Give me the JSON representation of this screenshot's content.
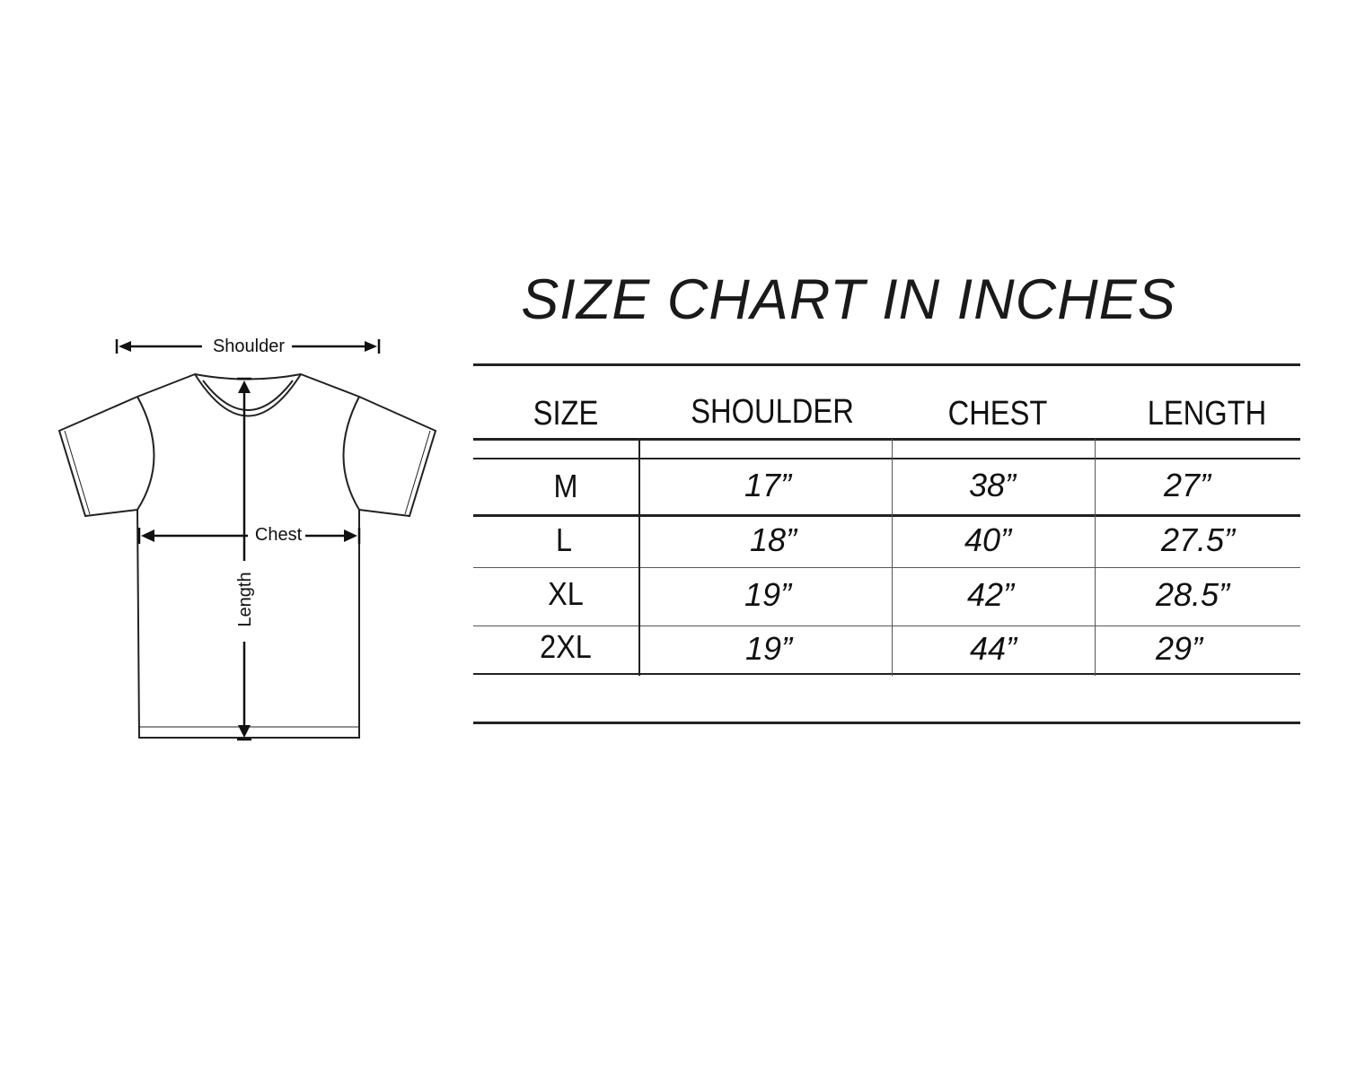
{
  "title": "SIZE CHART IN INCHES",
  "diagram": {
    "labels": {
      "shoulder": "Shoulder",
      "chest": "Chest",
      "length": "Length"
    },
    "line_color": "#222222"
  },
  "table": {
    "headers": [
      "SIZE",
      "SHOULDER",
      "CHEST",
      "LENGTH"
    ],
    "rows": [
      [
        "M",
        "17”",
        "38”",
        "27”"
      ],
      [
        "L",
        "18”",
        "40”",
        "27.5”"
      ],
      [
        "XL",
        "19”",
        "42”",
        "28.5”"
      ],
      [
        "2XL",
        "19”",
        "44”",
        "29”"
      ]
    ]
  }
}
